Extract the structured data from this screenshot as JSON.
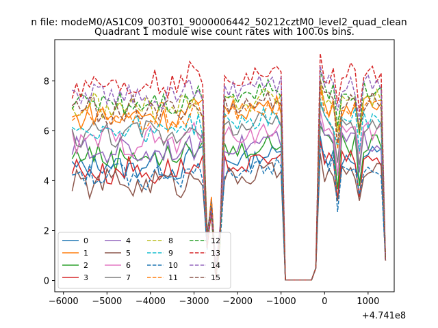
{
  "chart_data": {
    "type": "line",
    "suptitle": "n file: modeM0/AS1C09_003T01_9000006442_50212cztM0_level2_quad_clean",
    "title": "Quadrant 1 module wise count rates with 100.0s bins.",
    "x_offset_label": "+4.741e8",
    "xlim": [
      -6200,
      1600
    ],
    "ylim": [
      -0.45,
      9.65
    ],
    "xticks": [
      -6000,
      -5000,
      -4000,
      -3000,
      -2000,
      -1000,
      0,
      1000
    ],
    "xtick_labels": [
      "−6000",
      "−5000",
      "−4000",
      "−3000",
      "−2000",
      "−1000",
      "0",
      "1000"
    ],
    "yticks": [
      0,
      2,
      4,
      6,
      8
    ],
    "ytick_labels": [
      "0",
      "2",
      "4",
      "6",
      "8"
    ],
    "legend_position": "lower-left",
    "series": [
      {
        "name": "0",
        "color": "#1f77b4",
        "dash": "solid",
        "base": 4.6
      },
      {
        "name": "1",
        "color": "#ff7f0e",
        "dash": "solid",
        "base": 6.6
      },
      {
        "name": "2",
        "color": "#2ca02c",
        "dash": "solid",
        "base": 5.0
      },
      {
        "name": "3",
        "color": "#d62728",
        "dash": "solid",
        "base": 4.4
      },
      {
        "name": "4",
        "color": "#9467bd",
        "dash": "solid",
        "base": 5.2
      },
      {
        "name": "5",
        "color": "#8c564b",
        "dash": "solid",
        "base": 3.9
      },
      {
        "name": "6",
        "color": "#e377c2",
        "dash": "solid",
        "base": 5.6
      },
      {
        "name": "7",
        "color": "#7f7f7f",
        "dash": "solid",
        "base": 5.9
      },
      {
        "name": "8",
        "color": "#bcbd22",
        "dash": "dashed",
        "base": 6.9
      },
      {
        "name": "9",
        "color": "#17becf",
        "dash": "dashed",
        "base": 6.1
      },
      {
        "name": "10",
        "color": "#1f77b4",
        "dash": "dashed",
        "base": 4.2
      },
      {
        "name": "11",
        "color": "#ff7f0e",
        "dash": "dashed",
        "base": 6.5
      },
      {
        "name": "12",
        "color": "#2ca02c",
        "dash": "dashed",
        "base": 7.2
      },
      {
        "name": "13",
        "color": "#d62728",
        "dash": "dashed",
        "base": 7.9
      },
      {
        "name": "14",
        "color": "#9467bd",
        "dash": "dashed",
        "base": 7.4
      },
      {
        "name": "15",
        "color": "#8c564b",
        "dash": "dashed",
        "base": 6.8
      }
    ]
  }
}
